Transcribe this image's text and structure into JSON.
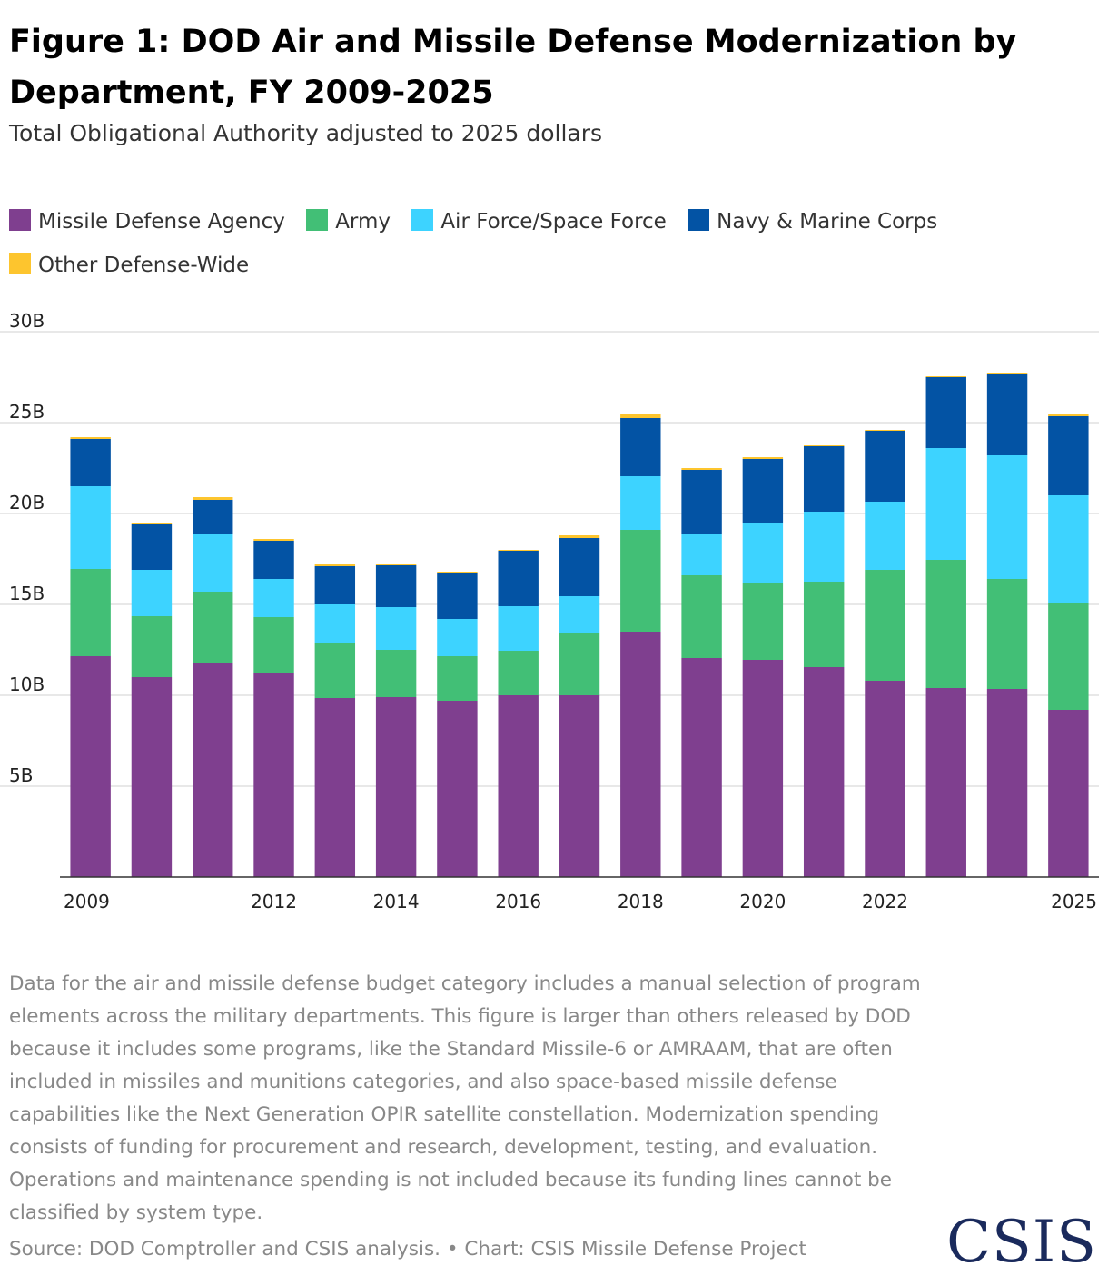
{
  "title": "Figure 1: DOD Air and Missile Defense Modernization by Department, FY 2009-2025",
  "subtitle": "Total Obligational Authority adjusted to 2025 dollars",
  "legend": [
    {
      "label": "Missile Defense Agency",
      "color": "#7f3f8f"
    },
    {
      "label": "Army",
      "color": "#42bf76"
    },
    {
      "label": "Air Force/Space Force",
      "color": "#3dd3ff"
    },
    {
      "label": "Navy & Marine Corps",
      "color": "#0353a4"
    },
    {
      "label": "Other Defense-Wide",
      "color": "#fdc52e"
    }
  ],
  "chart_data": {
    "type": "bar",
    "stacked": true,
    "categories": [
      "2009",
      "2010",
      "2011",
      "2012",
      "2013",
      "2014",
      "2015",
      "2016",
      "2017",
      "2018",
      "2019",
      "2020",
      "2021",
      "2022",
      "2023",
      "2024",
      "2025"
    ],
    "x_tick_labels": [
      "2009",
      "",
      "",
      "2012",
      "",
      "2014",
      "",
      "2016",
      "",
      "2018",
      "",
      "2020",
      "",
      "2022",
      "",
      "",
      "2025"
    ],
    "y_tick_labels": [
      "5B",
      "10B",
      "15B",
      "20B",
      "25B",
      "30B"
    ],
    "y_ticks": [
      5,
      10,
      15,
      20,
      25,
      30
    ],
    "ylim": [
      0,
      30
    ],
    "unit": "B",
    "series": [
      {
        "name": "Missile Defense Agency",
        "color": "#7f3f8f",
        "values": [
          12.15,
          11.0,
          11.8,
          11.2,
          9.85,
          9.9,
          9.7,
          10.0,
          10.0,
          13.5,
          12.05,
          11.95,
          11.55,
          10.8,
          10.4,
          10.35,
          9.2
        ]
      },
      {
        "name": "Army",
        "color": "#42bf76",
        "values": [
          4.8,
          3.35,
          3.9,
          3.1,
          3.0,
          2.6,
          2.45,
          2.45,
          3.45,
          5.6,
          4.55,
          4.25,
          4.7,
          6.1,
          7.05,
          6.05,
          5.85
        ]
      },
      {
        "name": "Air Force/Space Force",
        "color": "#3dd3ff",
        "values": [
          4.55,
          2.55,
          3.15,
          2.1,
          2.15,
          2.35,
          2.05,
          2.45,
          2.0,
          2.95,
          2.25,
          3.3,
          3.85,
          3.75,
          6.15,
          6.8,
          5.95
        ]
      },
      {
        "name": "Navy & Marine Corps",
        "color": "#0353a4",
        "values": [
          2.6,
          2.5,
          1.9,
          2.1,
          2.1,
          2.3,
          2.5,
          3.05,
          3.2,
          3.2,
          3.55,
          3.5,
          3.6,
          3.9,
          3.9,
          4.45,
          4.35
        ]
      },
      {
        "name": "Other Defense-Wide",
        "color": "#fdc52e",
        "values": [
          0.1,
          0.1,
          0.15,
          0.1,
          0.1,
          0.05,
          0.1,
          0.05,
          0.15,
          0.2,
          0.1,
          0.1,
          0.05,
          0.05,
          0.05,
          0.1,
          0.15
        ]
      }
    ]
  },
  "note": "Data for the air and missile defense budget category includes a manual selection of program elements across the military departments. This figure is larger than others released by DOD because it includes some programs, like the Standard Missile-6 or AMRAAM, that are often included in missiles and munitions categories, and also space-based missile defense capabilities like the Next Generation OPIR satellite constellation. Modernization spending consists of funding for procurement and research, development, testing, and evaluation. Operations and maintenance spending is not included because its funding lines cannot be classified by system type.",
  "source": "Source: DOD Comptroller and CSIS analysis. • Chart: CSIS Missile Defense Project",
  "logo": "CSIS"
}
